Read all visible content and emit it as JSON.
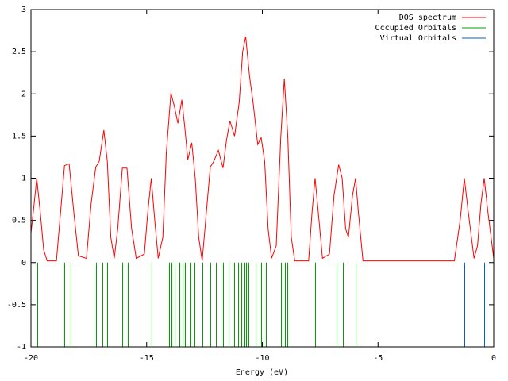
{
  "chart_data": {
    "type": "line",
    "xlabel": "Energy (eV)",
    "xlim": [
      -20,
      0
    ],
    "xticks": [
      -20,
      -15,
      -10,
      -5,
      0
    ],
    "ylim": [
      -1,
      3
    ],
    "yticks": [
      -1,
      -0.5,
      0,
      0.5,
      1,
      1.5,
      2,
      2.5,
      3
    ],
    "grid": false,
    "legend": "upper right",
    "series": [
      {
        "name": "DOS spectrum",
        "color": "#ff0000",
        "style": "line",
        "x": [
          -20,
          -19.9,
          -19.75,
          -19.6,
          -19.45,
          -19.3,
          -18.9,
          -18.75,
          -18.55,
          -18.35,
          -18.15,
          -17.95,
          -17.6,
          -17.4,
          -17.2,
          -17.05,
          -16.85,
          -16.7,
          -16.55,
          -16.4,
          -16.25,
          -16.05,
          -15.85,
          -15.65,
          -15.45,
          -15.1,
          -14.95,
          -14.8,
          -14.65,
          -14.5,
          -14.3,
          -14.15,
          -13.95,
          -13.8,
          -13.65,
          -13.48,
          -13.35,
          -13.22,
          -13.05,
          -12.9,
          -12.75,
          -12.6,
          -12.45,
          -12.25,
          -12.1,
          -11.9,
          -11.7,
          -11.55,
          -11.4,
          -11.2,
          -11.0,
          -10.85,
          -10.72,
          -10.55,
          -10.4,
          -10.2,
          -10.05,
          -9.9,
          -9.75,
          -9.6,
          -9.4,
          -9.2,
          -9.05,
          -8.9,
          -8.75,
          -8.6,
          -8.0,
          -7.85,
          -7.72,
          -7.55,
          -7.4,
          -7.1,
          -6.9,
          -6.7,
          -6.55,
          -6.4,
          -6.28,
          -6.1,
          -5.97,
          -5.85,
          -5.65,
          -1.7,
          -1.45,
          -1.27,
          -1.1,
          -0.85,
          -0.7,
          -0.55,
          -0.41,
          -0.25,
          0
        ],
        "values": [
          0.35,
          0.6,
          1.0,
          0.6,
          0.15,
          0.02,
          0.02,
          0.5,
          1.15,
          1.17,
          0.6,
          0.08,
          0.05,
          0.7,
          1.13,
          1.2,
          1.57,
          1.2,
          0.3,
          0.05,
          0.4,
          1.12,
          1.12,
          0.4,
          0.05,
          0.1,
          0.6,
          1.0,
          0.5,
          0.05,
          0.3,
          1.3,
          2.01,
          1.85,
          1.65,
          1.93,
          1.6,
          1.22,
          1.42,
          1.0,
          0.3,
          0.02,
          0.5,
          1.13,
          1.2,
          1.33,
          1.12,
          1.45,
          1.68,
          1.5,
          1.9,
          2.5,
          2.68,
          2.2,
          1.9,
          1.4,
          1.48,
          1.2,
          0.4,
          0.05,
          0.2,
          1.5,
          2.18,
          1.5,
          0.3,
          0.02,
          0.02,
          0.6,
          1.0,
          0.5,
          0.05,
          0.1,
          0.8,
          1.16,
          1.0,
          0.4,
          0.3,
          0.8,
          1.0,
          0.6,
          0.02,
          0.02,
          0.5,
          1.0,
          0.6,
          0.05,
          0.2,
          0.7,
          1.0,
          0.6,
          0.05
        ]
      },
      {
        "name": "Occupied Orbitals",
        "color": "#00a000",
        "style": "impulses",
        "x": [
          -19.73,
          -18.56,
          -18.28,
          -17.19,
          -16.91,
          -16.71,
          -16.05,
          -15.81,
          -14.79,
          -14.03,
          -13.93,
          -13.79,
          -13.58,
          -13.45,
          -13.34,
          -13.1,
          -12.93,
          -12.59,
          -12.25,
          -12.01,
          -11.7,
          -11.46,
          -11.22,
          -11.05,
          -10.91,
          -10.77,
          -10.7,
          -10.6,
          -10.29,
          -10.05,
          -9.85,
          -9.19,
          -9.02,
          -8.92,
          -7.72,
          -6.79,
          -6.52,
          -5.97
        ],
        "values": [
          -1,
          -1,
          -1,
          -1,
          -1,
          -1,
          -1,
          -1,
          -1,
          -1,
          -1,
          -1,
          -1,
          -1,
          -1,
          -1,
          -1,
          -1,
          -1,
          -1,
          -1,
          -1,
          -1,
          -1,
          -1,
          -1,
          -1,
          -1,
          -1,
          -1,
          -1,
          -1,
          -1,
          -1,
          -1,
          -1,
          -1,
          -1
        ]
      },
      {
        "name": "Virtual Orbitals",
        "color": "#0060d0",
        "style": "impulses",
        "x": [
          -1.27,
          -0.41
        ],
        "values": [
          -1,
          -1
        ]
      }
    ]
  }
}
